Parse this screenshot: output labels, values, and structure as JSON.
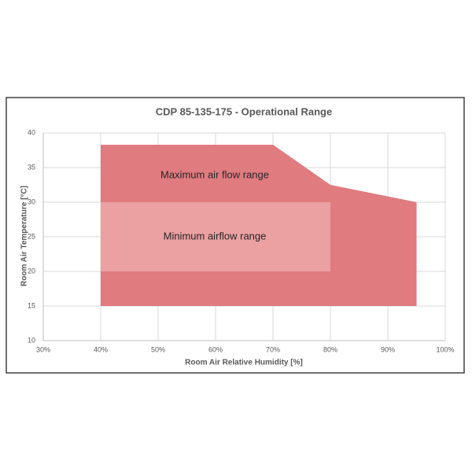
{
  "chart_data": {
    "type": "polygon",
    "title": "CDP 85-135-175 - Operational Range",
    "x_label": "Room Air Relative Humidity [%]",
    "y_label": "Room Air Temperature [°C]",
    "xlim": [
      30,
      100
    ],
    "xticks": [
      {
        "value": 30,
        "label": "30%"
      },
      {
        "value": 40,
        "label": "40%"
      },
      {
        "value": 50,
        "label": "50%"
      },
      {
        "value": 60,
        "label": "60%"
      },
      {
        "value": 70,
        "label": "70%"
      },
      {
        "value": 80,
        "label": "80%"
      },
      {
        "value": 90,
        "label": "90%"
      },
      {
        "value": 100,
        "label": "100%"
      }
    ],
    "ylim": [
      10,
      40
    ],
    "yticks": [
      10,
      15,
      20,
      25,
      30,
      35,
      40
    ],
    "grid": true,
    "series": [
      {
        "name": "Maximum air flow range",
        "color": "#e07b80",
        "x": [
          40,
          70,
          80,
          95,
          95,
          40
        ],
        "values": [
          38.3,
          38.3,
          32.5,
          30,
          15,
          15
        ]
      },
      {
        "name": "Minimum airflow range",
        "color": "#eba0a2",
        "x": [
          40,
          80,
          80,
          40
        ],
        "values": [
          30,
          30,
          20,
          20
        ]
      }
    ]
  }
}
